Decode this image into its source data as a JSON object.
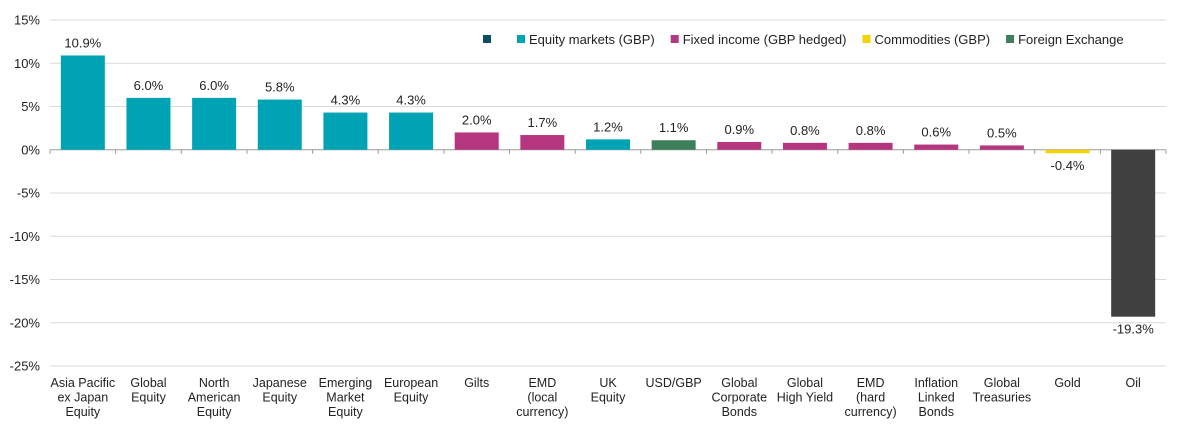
{
  "chart_data": {
    "type": "bar",
    "title": "",
    "xlabel": "",
    "ylabel": "",
    "ylim": [
      -25,
      15
    ],
    "yticks": [
      15,
      10,
      5,
      0,
      -5,
      -10,
      -15,
      -20,
      -25
    ],
    "ytick_labels": [
      "15%",
      "10%",
      "5%",
      "0%",
      "-5%",
      "-10%",
      "-15%",
      "-20%",
      "-25%"
    ],
    "grid": true,
    "legend_position": "top-right",
    "legend": [
      {
        "label": "",
        "color": "#0b4f5e"
      },
      {
        "label": "Equity markets (GBP)",
        "color": "#00a3b4"
      },
      {
        "label": "Fixed income (GBP hedged)",
        "color": "#b5357f"
      },
      {
        "label": "Commodities (GBP)",
        "color": "#f3d200"
      },
      {
        "label": "Foreign Exchange",
        "color": "#3d7f5a"
      }
    ],
    "categories": [
      [
        "Asia Pacific",
        "ex Japan",
        "Equity"
      ],
      [
        "Global",
        "Equity"
      ],
      [
        "North",
        "American",
        "Equity"
      ],
      [
        "Japanese",
        "Equity"
      ],
      [
        "Emerging",
        "Market",
        "Equity"
      ],
      [
        "European",
        "Equity"
      ],
      [
        "Gilts"
      ],
      [
        "EMD",
        "(local",
        "currency)"
      ],
      [
        "UK",
        "Equity"
      ],
      [
        "USD/GBP"
      ],
      [
        "Global",
        "Corporate",
        "Bonds"
      ],
      [
        "Global",
        "High Yield"
      ],
      [
        "EMD",
        "(hard",
        "currency)"
      ],
      [
        "Inflation",
        "Linked",
        "Bonds"
      ],
      [
        "Global",
        "Treasuries"
      ],
      [
        "Gold"
      ],
      [
        "Oil"
      ]
    ],
    "values": [
      10.9,
      6.0,
      6.0,
      5.8,
      4.3,
      4.3,
      2.0,
      1.7,
      1.2,
      1.1,
      0.9,
      0.8,
      0.8,
      0.6,
      0.5,
      -0.4,
      -19.3
    ],
    "data_labels": [
      "10.9%",
      "6.0%",
      "6.0%",
      "5.8%",
      "4.3%",
      "4.3%",
      "2.0%",
      "1.7%",
      "1.2%",
      "1.1%",
      "0.9%",
      "0.8%",
      "0.8%",
      "0.6%",
      "0.5%",
      "-0.4%",
      "-19.3%"
    ],
    "bar_colors": [
      "#00a3b4",
      "#00a3b4",
      "#00a3b4",
      "#00a3b4",
      "#00a3b4",
      "#00a3b4",
      "#b5357f",
      "#b5357f",
      "#00a3b4",
      "#3d7f5a",
      "#b5357f",
      "#b5357f",
      "#b5357f",
      "#b5357f",
      "#b5357f",
      "#f3d200",
      "#404040"
    ]
  }
}
